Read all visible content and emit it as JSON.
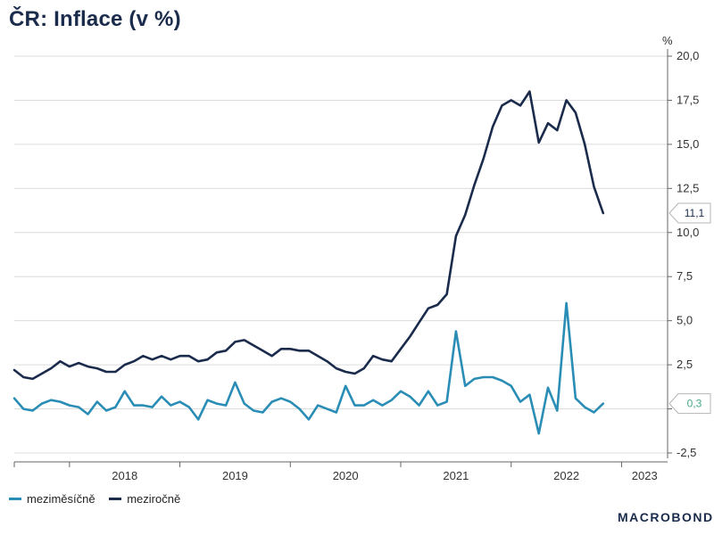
{
  "title": "ČR: Inflace (v %)",
  "brand": "MACROBOND",
  "chart_data": {
    "type": "line",
    "ylabel": "%",
    "ylim": [
      -2.5,
      20.0
    ],
    "yticks": [
      "20,0",
      "17,5",
      "15,0",
      "12,5",
      "10,0",
      "7,5",
      "5,0",
      "2,5",
      "",
      "-2,5"
    ],
    "ytick_values": [
      20.0,
      17.5,
      15.0,
      12.5,
      10.0,
      7.5,
      5.0,
      2.5,
      0.0,
      -2.5
    ],
    "xlim": [
      "2017-07",
      "2023-06"
    ],
    "xticks": [
      "2018",
      "2019",
      "2020",
      "2021",
      "2022",
      "2023"
    ],
    "grid": true,
    "legend_position": "bottom-left",
    "colors": {
      "mom": "#2a8db5",
      "yoy": "#1a2b4c"
    },
    "end_labels": {
      "yoy": "11,1",
      "mom": "0,3"
    },
    "series": [
      {
        "name": "meziměsíčně",
        "key": "mom",
        "start": "2017-07",
        "values": [
          0.6,
          0.0,
          -0.1,
          0.3,
          0.5,
          0.4,
          0.2,
          0.1,
          -0.3,
          0.4,
          -0.1,
          0.1,
          1.0,
          0.2,
          0.2,
          0.1,
          0.7,
          0.2,
          0.4,
          0.1,
          -0.6,
          0.5,
          0.3,
          0.2,
          1.5,
          0.3,
          -0.1,
          -0.2,
          0.4,
          0.6,
          0.4,
          0.0,
          -0.6,
          0.2,
          0.0,
          -0.2,
          1.3,
          0.2,
          0.2,
          0.5,
          0.2,
          0.5,
          1.0,
          0.7,
          0.2,
          1.0,
          0.2,
          0.4,
          4.4,
          1.3,
          1.7,
          1.8,
          1.8,
          1.6,
          1.3,
          0.4,
          0.8,
          -1.4,
          1.2,
          -0.1,
          6.0,
          0.6,
          0.1,
          -0.2,
          0.3
        ]
      },
      {
        "name": "meziročně",
        "key": "yoy",
        "start": "2017-07",
        "values": [
          2.2,
          1.8,
          1.7,
          2.0,
          2.3,
          2.7,
          2.4,
          2.6,
          2.4,
          2.3,
          2.1,
          2.1,
          2.5,
          2.7,
          3.0,
          2.8,
          3.0,
          2.8,
          3.0,
          3.0,
          2.7,
          2.8,
          3.2,
          3.3,
          3.8,
          3.9,
          3.6,
          3.3,
          3.0,
          3.4,
          3.4,
          3.3,
          3.3,
          3.0,
          2.7,
          2.3,
          2.1,
          2.0,
          2.3,
          3.0,
          2.8,
          2.7,
          3.4,
          4.1,
          4.9,
          5.7,
          5.9,
          6.5,
          9.8,
          11.0,
          12.7,
          14.2,
          16.0,
          17.2,
          17.5,
          17.2,
          18.0,
          15.1,
          16.2,
          15.8,
          17.5,
          16.8,
          15.0,
          12.6,
          11.1
        ]
      }
    ]
  }
}
